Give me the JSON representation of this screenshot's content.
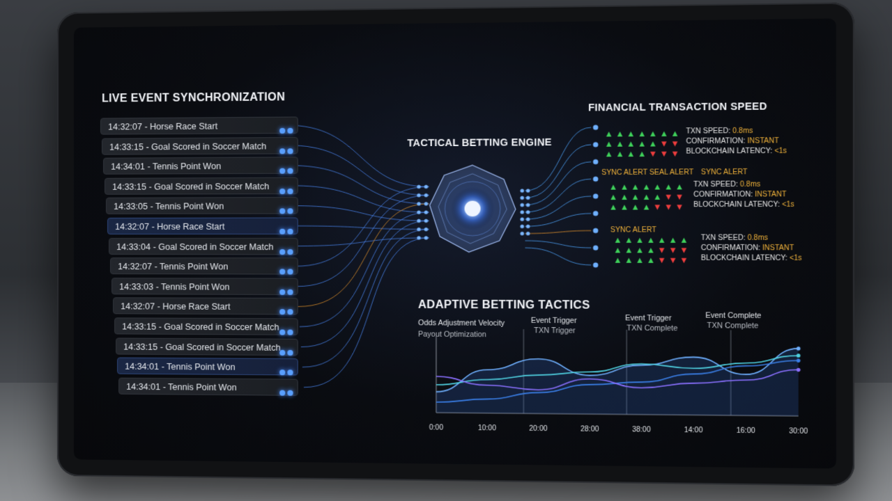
{
  "live": {
    "title": "LIVE EVENT SYNCHRONIZATION",
    "events": [
      "14:32:07 - Horse Race Start",
      "14:33:15 - Goal Scored in Soccer Match",
      "14:34:01 - Tennis Point Won",
      "14:33:15 - Goal Scored in Soccer Match",
      "14:33:05 - Tennis Point Won",
      "14:32:07 - Horse Race Start",
      "14:33:04 - Goal Scored in Soccer Match",
      "14:32:07 - Tennis Point Won",
      "14:33:03 - Tennis Point Won",
      "14:32:07 - Horse Race Start",
      "14:33:15 - Goal Scored in Soccer Match",
      "14:33:15 - Goal Scored in Soccer Match",
      "14:34:01 - Tennis Point Won",
      "14:34:01 - Tennis Point Won"
    ]
  },
  "engine": {
    "title": "TACTICAL BETTING ENGINE"
  },
  "financial": {
    "title": "FINANCIAL TRANSACTION SPEED",
    "blocks": [
      {
        "speed_label": "TXN SPEED: ",
        "speed_value": "0.8ms",
        "conf_label": "CONFIRMATION: ",
        "conf_value": "INSTANT",
        "lat_label": "BLOCKCHAIN LATENCY: ",
        "lat_value": "<1s"
      },
      {
        "speed_label": "TXN SPEED: ",
        "speed_value": "0.8ms",
        "conf_label": "CONFIRMATION: ",
        "conf_value": "INSTANT",
        "lat_label": "BLOCKCHAIN LATENCY: ",
        "lat_value": "<1s"
      },
      {
        "speed_label": "TXN SPEED: ",
        "speed_value": "0.8ms",
        "conf_label": "CONFIRMATION: ",
        "conf_value": "INSTANT",
        "lat_label": "BLOCKCHAIN LATENCY: ",
        "lat_value": "<1s"
      }
    ],
    "alerts": [
      "SYNC ALERT SEAL ALERT",
      "SYNC ALERT",
      "SYNC ALERT"
    ],
    "arrow_rows": [
      [
        "up",
        "up",
        "up",
        "up",
        "up",
        "up",
        "up"
      ],
      [
        "up",
        "up",
        "up",
        "up",
        "up",
        "down",
        "down"
      ],
      [
        "up",
        "up",
        "up",
        "up",
        "down",
        "down",
        "down"
      ],
      [
        "up",
        "up",
        "up",
        "up",
        "up",
        "up",
        "up"
      ],
      [
        "up",
        "up",
        "up",
        "up",
        "up",
        "down",
        "down"
      ],
      [
        "up",
        "up",
        "up",
        "up",
        "down",
        "down",
        "down"
      ],
      [
        "up",
        "up",
        "up",
        "up",
        "up",
        "up",
        "up"
      ],
      [
        "up",
        "up",
        "up",
        "up",
        "down",
        "down",
        "down"
      ],
      [
        "up",
        "up",
        "up",
        "up",
        "down",
        "down",
        "down"
      ]
    ],
    "colors": {
      "up": "#3ed05a",
      "down": "#ef3d3d",
      "accent": "#f0b23a"
    }
  },
  "adaptive": {
    "title": "ADAPTIVE BETTING TACTICS",
    "label1": "Odds Adjustment Velocity",
    "label2": "Payout Optimization",
    "markers": [
      {
        "title": "Event Trigger",
        "sub": "TXN Trigger"
      },
      {
        "title": "Event Trigger",
        "sub": "TXN Complete"
      },
      {
        "title": "Event Complete",
        "sub": "TXN Complete"
      }
    ]
  },
  "chart_data": {
    "type": "line",
    "x_ticks": [
      "0:00",
      "10:00",
      "20:00",
      "28:00",
      "38:00",
      "14:00",
      "16:00",
      "30:00"
    ],
    "x": [
      0,
      1,
      2,
      3,
      4,
      5,
      6,
      7
    ],
    "series": [
      {
        "values": [
          30,
          62,
          78,
          55,
          70,
          82,
          58,
          95
        ]
      },
      {
        "values": [
          40,
          48,
          55,
          60,
          72,
          66,
          74,
          85
        ]
      },
      {
        "values": [
          15,
          20,
          30,
          42,
          46,
          58,
          70,
          78
        ]
      },
      {
        "values": [
          52,
          40,
          34,
          50,
          38,
          45,
          50,
          65
        ]
      }
    ],
    "grid": false
  }
}
